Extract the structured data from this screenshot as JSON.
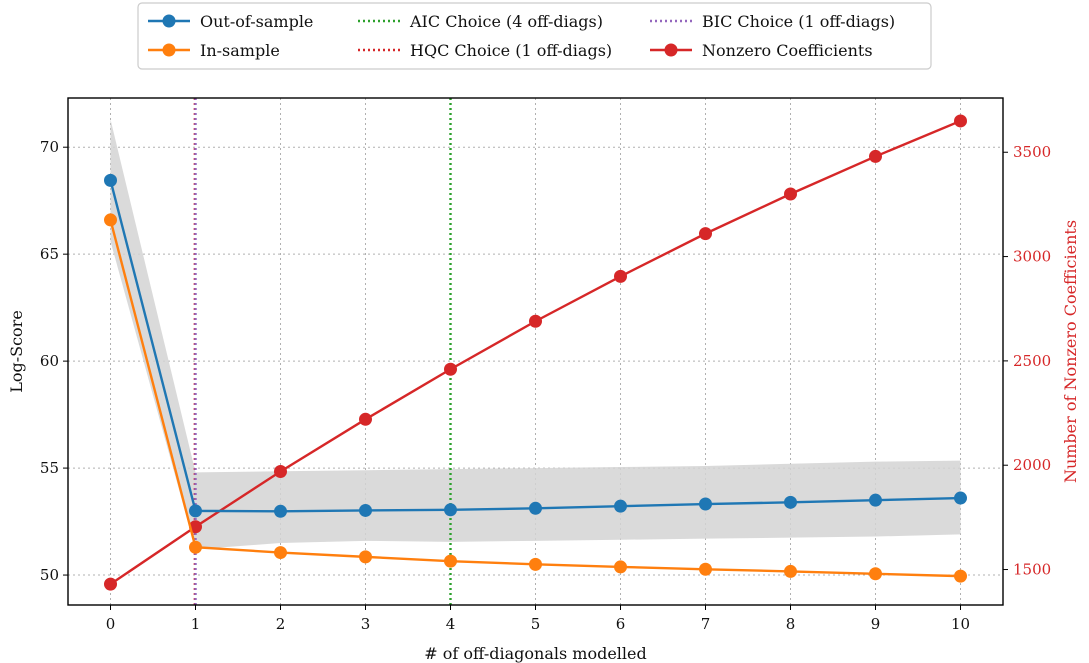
{
  "chart_data": {
    "type": "line",
    "title": "",
    "xlabel": "# of off-diagonals modelled",
    "ylabel": "Log-Score",
    "y2label": "Number of Nonzero Coefficients",
    "x": [
      0,
      1,
      2,
      3,
      4,
      5,
      6,
      7,
      8,
      9,
      10
    ],
    "xlim": [
      -0.5,
      10.5
    ],
    "ylim": [
      48.6,
      72.3
    ],
    "y2lim": [
      1330,
      3760
    ],
    "xticks": [
      "0",
      "1",
      "2",
      "3",
      "4",
      "5",
      "6",
      "7",
      "8",
      "9",
      "10"
    ],
    "yticks": [
      "50",
      "55",
      "60",
      "65",
      "70"
    ],
    "y2ticks": [
      "1500",
      "2000",
      "2500",
      "3000",
      "3500"
    ],
    "grid": true,
    "legend_position": "top-center, outside, 3 columns",
    "series": [
      {
        "name": "Out-of-sample",
        "axis": "left",
        "color": "#1f77b4",
        "values": [
          68.45,
          53.0,
          52.98,
          53.02,
          53.05,
          53.12,
          53.22,
          53.32,
          53.4,
          53.5,
          53.6
        ]
      },
      {
        "name": "In-sample",
        "axis": "left",
        "color": "#ff7f0e",
        "values": [
          66.6,
          51.3,
          51.05,
          50.85,
          50.65,
          50.5,
          50.38,
          50.27,
          50.17,
          50.06,
          49.95
        ]
      },
      {
        "name": "Nonzero Coefficients",
        "axis": "right",
        "color": "#d62728",
        "values": [
          1430,
          1705,
          1970,
          2220,
          2460,
          2690,
          2905,
          3110,
          3300,
          3480,
          3650
        ]
      }
    ],
    "band": {
      "x": [
        0,
        1,
        2,
        3,
        4,
        5,
        6,
        7,
        8,
        9,
        10
      ],
      "upper": [
        71.3,
        54.8,
        54.85,
        54.9,
        54.95,
        55.0,
        55.05,
        55.1,
        55.2,
        55.3,
        55.35
      ],
      "lower": [
        65.6,
        51.2,
        51.5,
        51.6,
        51.55,
        51.6,
        51.65,
        51.7,
        51.75,
        51.8,
        51.9
      ],
      "color": "#d3d3d3"
    },
    "vlines": [
      {
        "name": "AIC Choice (4 off-diags)",
        "x": 4,
        "color": "#2ca02c"
      },
      {
        "name": "HQC Choice (1 off-diags)",
        "x": 1,
        "color": "#d62728"
      },
      {
        "name": "BIC Choice (1 off-diags)",
        "x": 1,
        "color": "#9467bd"
      }
    ]
  }
}
